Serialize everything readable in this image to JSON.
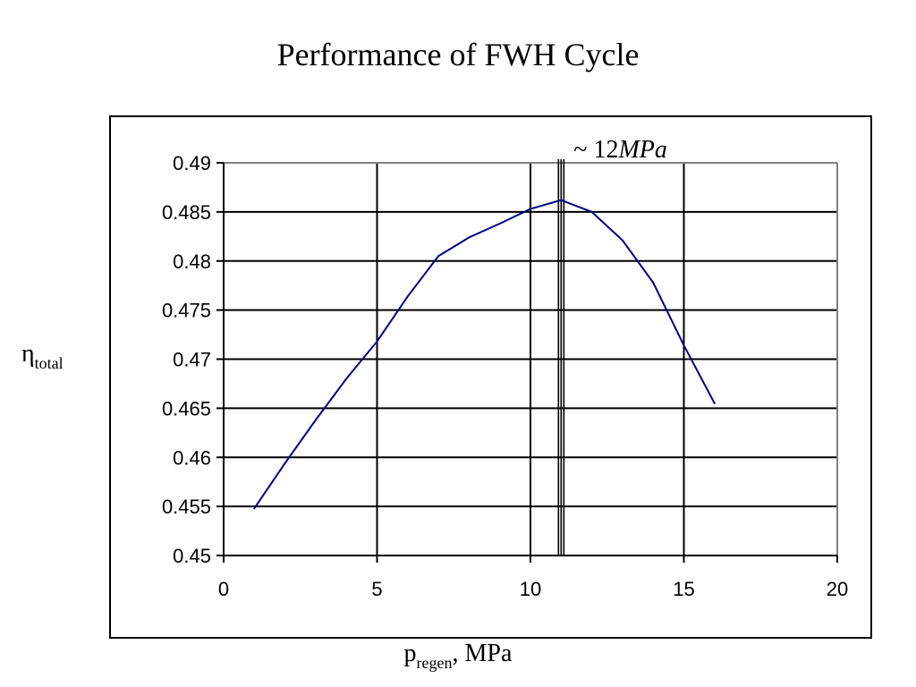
{
  "title": "Performance of FWH Cycle",
  "axes": {
    "y_symbol": "η",
    "y_subscript": "total",
    "x_symbol": "p",
    "x_subscript": "regen",
    "x_suffix": ", MPa"
  },
  "chart_data": {
    "type": "line",
    "title": "Performance of FWH Cycle",
    "xlabel": "p_regen, MPa",
    "ylabel": "η_total",
    "xlim": [
      0,
      20
    ],
    "ylim": [
      0.45,
      0.49
    ],
    "x_ticks": [
      0,
      5,
      10,
      15,
      20
    ],
    "x_tick_labels": [
      "0",
      "5",
      "10",
      "15",
      "20"
    ],
    "y_ticks": [
      0.45,
      0.455,
      0.46,
      0.465,
      0.47,
      0.475,
      0.48,
      0.485,
      0.49
    ],
    "y_tick_labels": [
      "0.45",
      "0.455",
      "0.46",
      "0.465",
      "0.47",
      "0.475",
      "0.48",
      "0.485",
      "0.49"
    ],
    "grid": true,
    "series": [
      {
        "color": "#000080",
        "x": [
          1,
          2,
          3,
          4,
          5,
          6,
          7,
          8,
          9,
          10,
          11,
          12,
          13,
          14,
          15,
          16
        ],
        "y": [
          0.4548,
          0.4594,
          0.4638,
          0.468,
          0.4718,
          0.4764,
          0.4805,
          0.4824,
          0.4838,
          0.4853,
          0.4862,
          0.485,
          0.4821,
          0.4778,
          0.4714,
          0.4655
        ]
      }
    ],
    "annotation": {
      "x": 11,
      "prefix": "~ 12",
      "unit": "MPa",
      "line_color": "#000000"
    }
  }
}
